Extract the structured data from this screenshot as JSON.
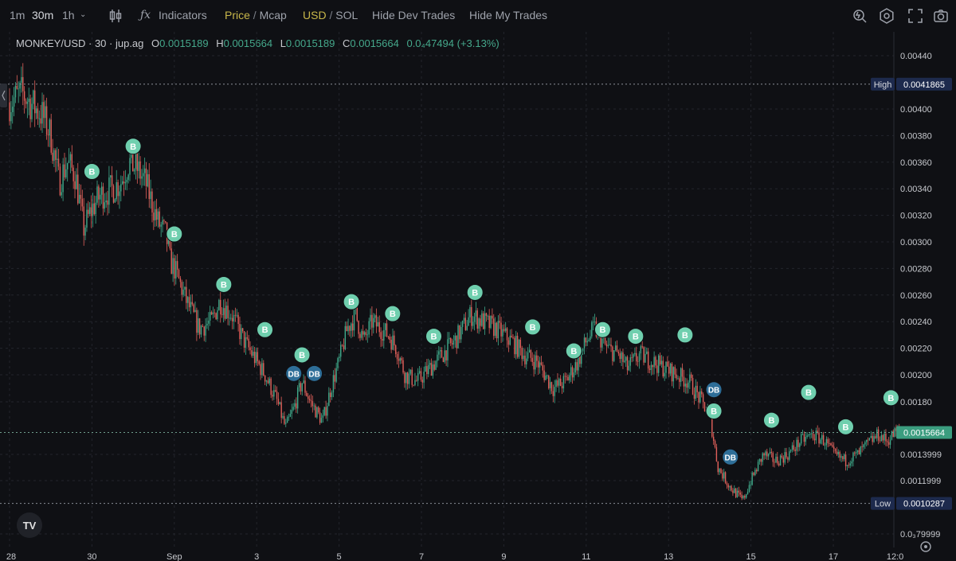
{
  "toolbar": {
    "tf_1m": "1m",
    "tf_30m": "30m",
    "tf_1h": "1h",
    "indicators": "Indicators",
    "price": "Price",
    "mcap": "Mcap",
    "usd": "USD",
    "sol": "SOL",
    "sep": "/",
    "hide_dev": "Hide Dev Trades",
    "hide_my": "Hide My Trades"
  },
  "legend": {
    "symbol": "MONKEY/USD · 30 · jup.ag",
    "o_label": "O",
    "o_value": "0.0015189",
    "h_label": "H",
    "h_value": "0.0015664",
    "l_label": "L",
    "l_value": "0.0015189",
    "c_label": "C",
    "c_value": "0.0015664",
    "change": "0.0₄47494 (+3.13%)"
  },
  "colors": {
    "up": "#3fa98a",
    "down": "#e0605a",
    "bg": "#0f1014",
    "badge_b": "#6fcfae",
    "badge_db": "#2e6e98",
    "tag_bg": "#1d2a4d"
  },
  "chart_data": {
    "type": "candlestick",
    "y_ticks": [
      {
        "v": 0.0044,
        "label": "0.00440"
      },
      {
        "v": 0.004,
        "label": "0.00400"
      },
      {
        "v": 0.0038,
        "label": "0.00380"
      },
      {
        "v": 0.0036,
        "label": "0.00360"
      },
      {
        "v": 0.0034,
        "label": "0.00340"
      },
      {
        "v": 0.0032,
        "label": "0.00320"
      },
      {
        "v": 0.003,
        "label": "0.00300"
      },
      {
        "v": 0.0028,
        "label": "0.00280"
      },
      {
        "v": 0.0026,
        "label": "0.00260"
      },
      {
        "v": 0.0024,
        "label": "0.00240"
      },
      {
        "v": 0.0022,
        "label": "0.00220"
      },
      {
        "v": 0.002,
        "label": "0.00200"
      },
      {
        "v": 0.0018,
        "label": "0.00180"
      },
      {
        "v": 0.0013999,
        "label": "0.0013999"
      },
      {
        "v": 0.0011999,
        "label": "0.0011999"
      },
      {
        "v": 0.00079999,
        "label": "0.0₃79999"
      }
    ],
    "x_ticks": [
      {
        "day": 28,
        "label": "28"
      },
      {
        "day": 30,
        "label": "30"
      },
      {
        "day": 32,
        "label": "Sep"
      },
      {
        "day": 34,
        "label": "3"
      },
      {
        "day": 36,
        "label": "5"
      },
      {
        "day": 38,
        "label": "7"
      },
      {
        "day": 40,
        "label": "9"
      },
      {
        "day": 42,
        "label": "11"
      },
      {
        "day": 44,
        "label": "13"
      },
      {
        "day": 46,
        "label": "15"
      },
      {
        "day": 48,
        "label": "17"
      },
      {
        "day": 49.5,
        "label": "12:0"
      }
    ],
    "high": {
      "label": "High",
      "value": 0.0041865,
      "text": "0.0041865"
    },
    "low": {
      "label": "Low",
      "value": 0.0010287,
      "text": "0.0010287"
    },
    "last": {
      "value": 0.0015664,
      "text": "0.0015664"
    },
    "path": [
      [
        28.0,
        0.00405
      ],
      [
        28.3,
        0.00412
      ],
      [
        28.5,
        0.00405
      ],
      [
        28.8,
        0.00395
      ],
      [
        29.0,
        0.0038
      ],
      [
        29.2,
        0.00345
      ],
      [
        29.4,
        0.0036
      ],
      [
        29.6,
        0.0035
      ],
      [
        29.8,
        0.0031
      ],
      [
        30.0,
        0.00325
      ],
      [
        30.2,
        0.00335
      ],
      [
        30.5,
        0.0034
      ],
      [
        30.7,
        0.00345
      ],
      [
        30.9,
        0.0036
      ],
      [
        31.1,
        0.00355
      ],
      [
        31.3,
        0.00345
      ],
      [
        31.6,
        0.00315
      ],
      [
        31.8,
        0.00305
      ],
      [
        31.9,
        0.00285
      ],
      [
        32.0,
        0.0028
      ],
      [
        32.3,
        0.00255
      ],
      [
        32.6,
        0.00235
      ],
      [
        32.9,
        0.0024
      ],
      [
        33.1,
        0.00255
      ],
      [
        33.4,
        0.00245
      ],
      [
        33.7,
        0.00225
      ],
      [
        34.0,
        0.0021
      ],
      [
        34.2,
        0.002
      ],
      [
        34.5,
        0.0018
      ],
      [
        34.7,
        0.0016
      ],
      [
        34.9,
        0.00175
      ],
      [
        35.1,
        0.00195
      ],
      [
        35.3,
        0.0018
      ],
      [
        35.6,
        0.00165
      ],
      [
        35.8,
        0.0019
      ],
      [
        36.0,
        0.0021
      ],
      [
        36.2,
        0.00235
      ],
      [
        36.4,
        0.00245
      ],
      [
        36.6,
        0.00225
      ],
      [
        36.8,
        0.0024
      ],
      [
        37.0,
        0.00235
      ],
      [
        37.2,
        0.0023
      ],
      [
        37.4,
        0.0022
      ],
      [
        37.6,
        0.002
      ],
      [
        37.9,
        0.00195
      ],
      [
        38.2,
        0.00205
      ],
      [
        38.5,
        0.00215
      ],
      [
        38.8,
        0.00225
      ],
      [
        39.0,
        0.00235
      ],
      [
        39.2,
        0.00245
      ],
      [
        39.5,
        0.0024
      ],
      [
        39.8,
        0.00235
      ],
      [
        40.0,
        0.0023
      ],
      [
        40.2,
        0.00225
      ],
      [
        40.5,
        0.00215
      ],
      [
        40.8,
        0.0021
      ],
      [
        41.0,
        0.002
      ],
      [
        41.2,
        0.0019
      ],
      [
        41.5,
        0.00195
      ],
      [
        41.8,
        0.0021
      ],
      [
        42.0,
        0.00225
      ],
      [
        42.2,
        0.00235
      ],
      [
        42.5,
        0.0022
      ],
      [
        42.8,
        0.00215
      ],
      [
        43.0,
        0.00205
      ],
      [
        43.3,
        0.00215
      ],
      [
        43.6,
        0.0021
      ],
      [
        43.9,
        0.00205
      ],
      [
        44.2,
        0.002
      ],
      [
        44.5,
        0.00195
      ],
      [
        44.7,
        0.00185
      ],
      [
        45.0,
        0.0017
      ],
      [
        45.2,
        0.0013
      ],
      [
        45.5,
        0.00115
      ],
      [
        45.8,
        0.00105
      ],
      [
        46.0,
        0.0012
      ],
      [
        46.3,
        0.0014
      ],
      [
        46.6,
        0.00135
      ],
      [
        46.9,
        0.0014
      ],
      [
        47.2,
        0.0015
      ],
      [
        47.5,
        0.00155
      ],
      [
        47.8,
        0.0015
      ],
      [
        48.0,
        0.0014
      ],
      [
        48.3,
        0.00135
      ],
      [
        48.6,
        0.0014
      ],
      [
        48.9,
        0.0015
      ],
      [
        49.1,
        0.00155
      ],
      [
        49.3,
        0.0015
      ],
      [
        49.5,
        0.001566
      ]
    ],
    "markers": [
      {
        "t": 30.0,
        "v": 0.00353,
        "label": "B"
      },
      {
        "t": 31.0,
        "v": 0.00372,
        "label": "B"
      },
      {
        "t": 32.0,
        "v": 0.00306,
        "label": "B"
      },
      {
        "t": 33.2,
        "v": 0.00268,
        "label": "B"
      },
      {
        "t": 34.2,
        "v": 0.00234,
        "label": "B"
      },
      {
        "t": 35.1,
        "v": 0.00215,
        "label": "B"
      },
      {
        "t": 34.9,
        "v": 0.00201,
        "label": "DB"
      },
      {
        "t": 35.4,
        "v": 0.00201,
        "label": "DB"
      },
      {
        "t": 36.3,
        "v": 0.00255,
        "label": "B"
      },
      {
        "t": 37.3,
        "v": 0.00246,
        "label": "B"
      },
      {
        "t": 38.3,
        "v": 0.00229,
        "label": "B"
      },
      {
        "t": 39.3,
        "v": 0.00262,
        "label": "B"
      },
      {
        "t": 40.7,
        "v": 0.00236,
        "label": "B"
      },
      {
        "t": 41.7,
        "v": 0.00218,
        "label": "B"
      },
      {
        "t": 42.4,
        "v": 0.00234,
        "label": "B"
      },
      {
        "t": 43.2,
        "v": 0.00229,
        "label": "B"
      },
      {
        "t": 44.4,
        "v": 0.0023,
        "label": "B"
      },
      {
        "t": 45.1,
        "v": 0.00189,
        "label": "DB"
      },
      {
        "t": 45.1,
        "v": 0.00173,
        "label": "B"
      },
      {
        "t": 45.5,
        "v": 0.00138,
        "label": "DB"
      },
      {
        "t": 46.5,
        "v": 0.00166,
        "label": "B"
      },
      {
        "t": 47.4,
        "v": 0.00187,
        "label": "B"
      },
      {
        "t": 48.3,
        "v": 0.00161,
        "label": "B"
      },
      {
        "t": 49.4,
        "v": 0.00183,
        "label": "B"
      }
    ]
  }
}
